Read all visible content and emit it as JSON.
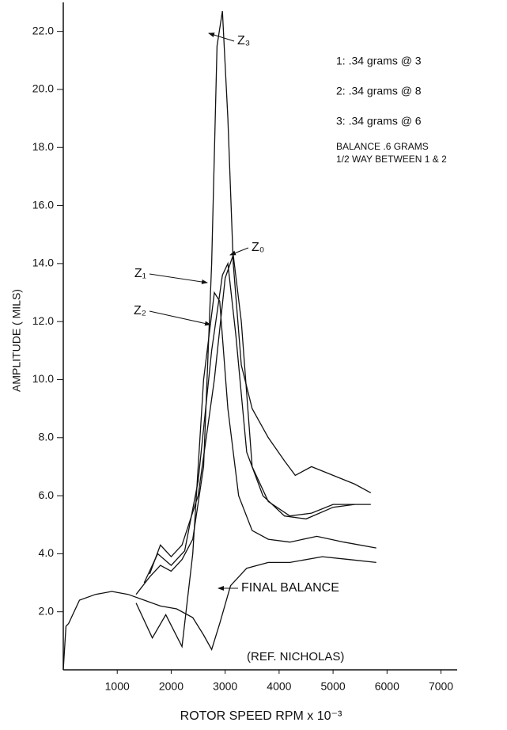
{
  "chart_data": {
    "type": "line",
    "ylabel": "AMPLITUDE ( MILS)",
    "xlabel": "ROTOR SPEED  RPM x 10⁻³",
    "xlim": [
      0,
      7300
    ],
    "ylim": [
      0,
      23
    ],
    "xticks": [
      1000,
      2000,
      3000,
      4000,
      5000,
      6000,
      7000
    ],
    "yticks": [
      {
        "value": 2,
        "label": "2.0"
      },
      {
        "value": 4,
        "label": "4.0"
      },
      {
        "value": 6,
        "label": "6.0"
      },
      {
        "value": 8,
        "label": "8.0"
      },
      {
        "value": 10,
        "label": "10.0"
      },
      {
        "value": 12,
        "label": "12.0"
      },
      {
        "value": 14,
        "label": "14.0"
      },
      {
        "value": 16,
        "label": "16.0"
      },
      {
        "value": 18,
        "label": "18.0"
      },
      {
        "value": 20,
        "label": "20.0"
      },
      {
        "value": 22,
        "label": "22.0"
      }
    ],
    "grid": false,
    "annotations": [
      "1: .34 grams @ 3",
      "2: .34 grams @ 8",
      "3: .34 grams @ 6",
      "BALANCE .6 GRAMS",
      "1/2 WAY BETWEEN 1 & 2",
      "(REF. NICHOLAS)"
    ],
    "series": [
      {
        "name": "Z₀",
        "color": "#111111",
        "x": [
          1600,
          1800,
          2000,
          2200,
          2500,
          2800,
          3000,
          3150,
          3300,
          3500,
          3800,
          4200,
          4600,
          5000,
          5700
        ],
        "values": [
          3.3,
          4.3,
          3.9,
          4.3,
          6.0,
          10.0,
          13.5,
          14.3,
          12.0,
          7.0,
          5.8,
          5.3,
          5.4,
          5.7,
          5.7
        ]
      },
      {
        "name": "Z₁",
        "color": "#111111",
        "x": [
          1500,
          1750,
          2000,
          2250,
          2500,
          2750,
          2950,
          3050,
          3200,
          3400,
          3700,
          4100,
          4500,
          5000,
          5400
        ],
        "values": [
          3.0,
          4.0,
          3.6,
          4.1,
          6.5,
          11.0,
          13.6,
          14.0,
          11.5,
          7.5,
          6.0,
          5.3,
          5.2,
          5.6,
          5.7
        ]
      },
      {
        "name": "Z₂",
        "color": "#111111",
        "x": [
          1350,
          1650,
          1900,
          2200,
          2400,
          2600,
          2800,
          2900,
          3050,
          3250,
          3500,
          3800,
          4200,
          4700,
          5200,
          5800
        ],
        "values": [
          2.3,
          1.1,
          1.9,
          0.8,
          4.0,
          10.0,
          13.0,
          12.7,
          9.0,
          6.0,
          4.8,
          4.5,
          4.4,
          4.6,
          4.4,
          4.2
        ]
      },
      {
        "name": "Z₃",
        "color": "#111111",
        "x": [
          1350,
          1600,
          1800,
          2000,
          2200,
          2400,
          2600,
          2750,
          2850,
          2950,
          3050,
          3150,
          3300,
          3500,
          3800,
          4100,
          4300,
          4600,
          5000,
          5400,
          5700
        ],
        "values": [
          2.6,
          3.2,
          3.6,
          3.4,
          3.8,
          4.5,
          7.0,
          14.0,
          21.5,
          22.7,
          19.0,
          14.0,
          10.5,
          9.0,
          8.0,
          7.2,
          6.7,
          7.0,
          6.7,
          6.4,
          6.1
        ]
      },
      {
        "name": "FINAL BALANCE",
        "color": "#111111",
        "x": [
          0,
          50,
          100,
          300,
          600,
          900,
          1200,
          1500,
          1800,
          2100,
          2400,
          2600,
          2750,
          2900,
          3100,
          3400,
          3800,
          4200,
          4800,
          5300,
          5800
        ],
        "values": [
          0,
          1.5,
          1.6,
          2.4,
          2.6,
          2.7,
          2.6,
          2.4,
          2.2,
          2.1,
          1.8,
          1.2,
          0.7,
          1.6,
          2.9,
          3.5,
          3.7,
          3.7,
          3.9,
          3.8,
          3.7
        ]
      }
    ]
  }
}
